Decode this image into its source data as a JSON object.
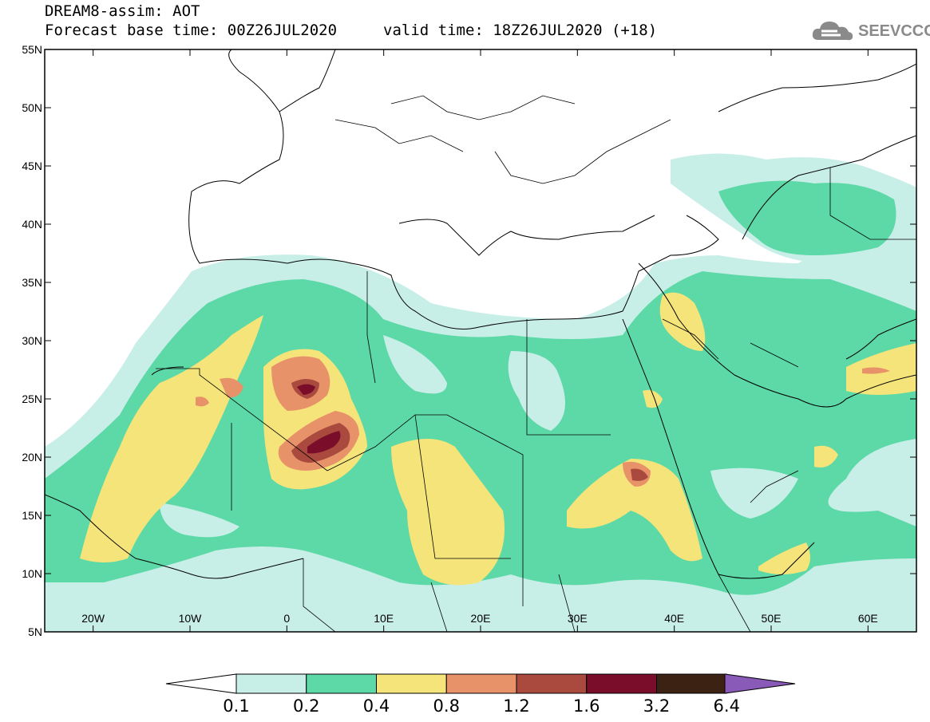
{
  "header": {
    "title": "DREAM8-assim: AOT",
    "forecast_base": "Forecast base time: 00Z26JUL2020",
    "valid_time": "valid time: 18Z26JUL2020 (+18)",
    "logo_text": "SEEVCCC"
  },
  "map": {
    "lat_labels": [
      "55N",
      "50N",
      "45N",
      "40N",
      "35N",
      "30N",
      "25N",
      "20N",
      "15N",
      "10N",
      "5N"
    ],
    "lon_labels": [
      "20W",
      "10W",
      "0",
      "10E",
      "20E",
      "30E",
      "40E",
      "50E",
      "60E"
    ],
    "lon_range": [
      -25,
      65
    ],
    "lat_range": [
      5,
      55
    ]
  },
  "colorbar": {
    "colors": [
      "#ffffff",
      "#c8eee8",
      "#5cd9a7",
      "#f5e47a",
      "#e8926a",
      "#aa4a3e",
      "#7a0e2a",
      "#3c2212",
      "#8a5ab8"
    ],
    "labels": [
      "0.1",
      "0.2",
      "0.4",
      "0.8",
      "1.2",
      "1.6",
      "3.2",
      "6.4"
    ]
  }
}
